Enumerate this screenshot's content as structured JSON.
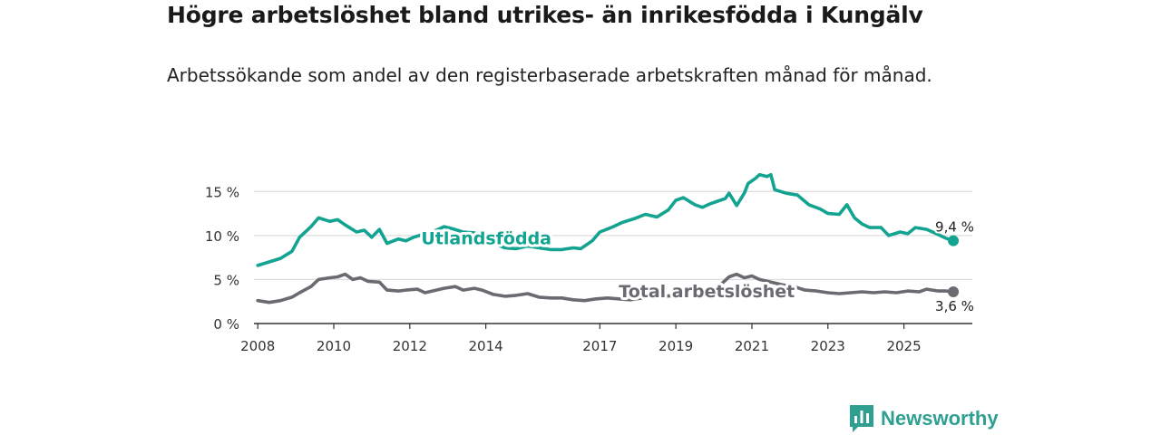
{
  "header": {
    "title": "Högre arbetslöshet bland utrikes- än inrikesfödda i Kungälv",
    "subtitle": "Arbetssökande som andel av den registerbaserade arbetskraften månad för månad."
  },
  "brand": {
    "name": "Newsworthy",
    "icon": "bar-chart-logo-icon"
  },
  "colors": {
    "foreign": "#13a391",
    "total": "#6b6a70",
    "grid": "#dddddd",
    "axis": "#333333"
  },
  "chart_data": {
    "type": "line",
    "title": "Högre arbetslöshet bland utrikes- än inrikesfödda i Kungälv",
    "subtitle": "Arbetssökande som andel av den registerbaserade arbetskraften månad för månad.",
    "xlabel": "",
    "ylabel": "",
    "xlim": [
      2007.9,
      2026.8
    ],
    "ylim": [
      0,
      17.5
    ],
    "y_ticks": [
      0,
      5,
      10,
      15
    ],
    "y_tick_labels": [
      "0 %",
      "5 %",
      "10 %",
      "15 %"
    ],
    "x_ticks": [
      2008,
      2010,
      2012,
      2014,
      2017,
      2019,
      2021,
      2023,
      2025
    ],
    "x_tick_labels": [
      "2008",
      "2010",
      "2012",
      "2014",
      "2017",
      "2019",
      "2021",
      "2023",
      "2025"
    ],
    "grid": true,
    "series": [
      {
        "name": "Utlandsfödda",
        "end_label": "9,4 %",
        "end_value": 9.4,
        "points": [
          [
            2008.0,
            6.6
          ],
          [
            2008.3,
            7.0
          ],
          [
            2008.6,
            7.4
          ],
          [
            2008.9,
            8.2
          ],
          [
            2009.1,
            9.8
          ],
          [
            2009.4,
            11.0
          ],
          [
            2009.6,
            12.0
          ],
          [
            2009.9,
            11.6
          ],
          [
            2010.1,
            11.8
          ],
          [
            2010.3,
            11.2
          ],
          [
            2010.6,
            10.4
          ],
          [
            2010.8,
            10.6
          ],
          [
            2011.0,
            9.8
          ],
          [
            2011.2,
            10.7
          ],
          [
            2011.4,
            9.1
          ],
          [
            2011.7,
            9.6
          ],
          [
            2011.9,
            9.4
          ],
          [
            2012.1,
            9.8
          ],
          [
            2012.4,
            10.2
          ],
          [
            2012.7,
            10.6
          ],
          [
            2012.9,
            11.0
          ],
          [
            2013.1,
            10.8
          ],
          [
            2013.4,
            10.4
          ],
          [
            2013.7,
            10.3
          ],
          [
            2013.9,
            9.6
          ],
          [
            2014.2,
            9.1
          ],
          [
            2014.5,
            8.6
          ],
          [
            2014.8,
            8.5
          ],
          [
            2015.1,
            8.8
          ],
          [
            2015.4,
            8.6
          ],
          [
            2015.7,
            8.4
          ],
          [
            2016.0,
            8.4
          ],
          [
            2016.3,
            8.6
          ],
          [
            2016.5,
            8.5
          ],
          [
            2016.8,
            9.4
          ],
          [
            2017.0,
            10.4
          ],
          [
            2017.3,
            10.9
          ],
          [
            2017.6,
            11.5
          ],
          [
            2017.9,
            11.9
          ],
          [
            2018.2,
            12.4
          ],
          [
            2018.5,
            12.1
          ],
          [
            2018.8,
            12.9
          ],
          [
            2019.0,
            14.0
          ],
          [
            2019.2,
            14.3
          ],
          [
            2019.5,
            13.5
          ],
          [
            2019.7,
            13.2
          ],
          [
            2019.9,
            13.6
          ],
          [
            2020.1,
            13.9
          ],
          [
            2020.3,
            14.2
          ],
          [
            2020.4,
            14.8
          ],
          [
            2020.6,
            13.4
          ],
          [
            2020.8,
            14.8
          ],
          [
            2020.9,
            15.9
          ],
          [
            2021.1,
            16.5
          ],
          [
            2021.2,
            16.9
          ],
          [
            2021.4,
            16.7
          ],
          [
            2021.5,
            16.9
          ],
          [
            2021.6,
            15.2
          ],
          [
            2021.9,
            14.8
          ],
          [
            2022.2,
            14.6
          ],
          [
            2022.5,
            13.5
          ],
          [
            2022.8,
            13.0
          ],
          [
            2023.0,
            12.5
          ],
          [
            2023.3,
            12.4
          ],
          [
            2023.5,
            13.5
          ],
          [
            2023.7,
            12.0
          ],
          [
            2023.9,
            11.3
          ],
          [
            2024.1,
            10.9
          ],
          [
            2024.4,
            10.9
          ],
          [
            2024.6,
            10.0
          ],
          [
            2024.9,
            10.4
          ],
          [
            2025.1,
            10.2
          ],
          [
            2025.3,
            10.9
          ],
          [
            2025.6,
            10.7
          ],
          [
            2025.8,
            10.3
          ],
          [
            2026.1,
            9.7
          ],
          [
            2026.3,
            9.4
          ]
        ]
      },
      {
        "name": "Total arbetslöshet",
        "end_label": "3,6 %",
        "end_value": 3.6,
        "points": [
          [
            2008.0,
            2.6
          ],
          [
            2008.3,
            2.4
          ],
          [
            2008.6,
            2.6
          ],
          [
            2008.9,
            3.0
          ],
          [
            2009.1,
            3.5
          ],
          [
            2009.4,
            4.2
          ],
          [
            2009.6,
            5.0
          ],
          [
            2009.9,
            5.2
          ],
          [
            2010.1,
            5.3
          ],
          [
            2010.3,
            5.6
          ],
          [
            2010.5,
            5.0
          ],
          [
            2010.7,
            5.2
          ],
          [
            2010.9,
            4.8
          ],
          [
            2011.2,
            4.7
          ],
          [
            2011.4,
            3.8
          ],
          [
            2011.7,
            3.7
          ],
          [
            2011.9,
            3.8
          ],
          [
            2012.2,
            3.9
          ],
          [
            2012.4,
            3.5
          ],
          [
            2012.7,
            3.8
          ],
          [
            2012.9,
            4.0
          ],
          [
            2013.2,
            4.2
          ],
          [
            2013.4,
            3.8
          ],
          [
            2013.7,
            4.0
          ],
          [
            2013.9,
            3.8
          ],
          [
            2014.2,
            3.3
          ],
          [
            2014.5,
            3.1
          ],
          [
            2014.8,
            3.2
          ],
          [
            2015.1,
            3.4
          ],
          [
            2015.4,
            3.0
          ],
          [
            2015.7,
            2.9
          ],
          [
            2016.0,
            2.9
          ],
          [
            2016.3,
            2.7
          ],
          [
            2016.6,
            2.6
          ],
          [
            2016.9,
            2.8
          ],
          [
            2017.2,
            2.9
          ],
          [
            2017.5,
            2.8
          ],
          [
            2017.8,
            2.7
          ],
          [
            2018.1,
            2.9
          ],
          [
            2018.4,
            3.0
          ],
          [
            2018.7,
            3.1
          ],
          [
            2019.0,
            3.2
          ],
          [
            2019.3,
            3.5
          ],
          [
            2019.6,
            3.6
          ],
          [
            2019.9,
            3.8
          ],
          [
            2020.2,
            4.5
          ],
          [
            2020.4,
            5.3
          ],
          [
            2020.6,
            5.6
          ],
          [
            2020.8,
            5.2
          ],
          [
            2021.0,
            5.4
          ],
          [
            2021.2,
            5.0
          ],
          [
            2021.5,
            4.7
          ],
          [
            2021.8,
            4.4
          ],
          [
            2022.1,
            4.2
          ],
          [
            2022.4,
            3.8
          ],
          [
            2022.7,
            3.7
          ],
          [
            2023.0,
            3.5
          ],
          [
            2023.3,
            3.4
          ],
          [
            2023.6,
            3.5
          ],
          [
            2023.9,
            3.6
          ],
          [
            2024.2,
            3.5
          ],
          [
            2024.5,
            3.6
          ],
          [
            2024.8,
            3.5
          ],
          [
            2025.1,
            3.7
          ],
          [
            2025.4,
            3.6
          ],
          [
            2025.6,
            3.9
          ],
          [
            2025.9,
            3.7
          ],
          [
            2026.1,
            3.7
          ],
          [
            2026.3,
            3.6
          ]
        ]
      }
    ]
  }
}
